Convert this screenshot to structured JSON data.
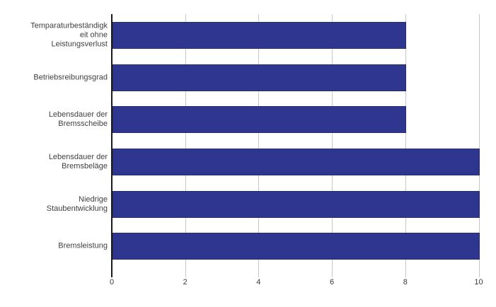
{
  "chart_data": {
    "type": "bar",
    "orientation": "horizontal",
    "title": "",
    "xlabel": "",
    "ylabel": "",
    "categories": [
      "Temparaturbeständigkeit ohne Leistungsverlust",
      "Betriebsreibungsgrad",
      "Lebensdauer der Bremsscheibe",
      "Lebensdauer der Bremsbeläge",
      "Niedrige Staubentwicklung",
      "Bremsleistung"
    ],
    "category_display_lines": [
      [
        "Temparaturbeständigk",
        "eit ohne",
        "Leistungsverlust"
      ],
      [
        "Betriebsreibungsgrad"
      ],
      [
        "Lebensdauer der",
        "Bremsscheibe"
      ],
      [
        "Lebensdauer der",
        "Bremsbeläge"
      ],
      [
        "Niedrige",
        "Staubentwicklung"
      ],
      [
        "Bremsleistung"
      ]
    ],
    "values": [
      8,
      8,
      8,
      10,
      10,
      10
    ],
    "xlim": [
      0,
      10
    ],
    "xticks": [
      "0",
      "2",
      "4",
      "6",
      "8",
      "10"
    ],
    "grid": true,
    "legend": false,
    "colors": {
      "bar_fill": "#2f368f",
      "bar_border": "#272d6e",
      "gridline": "#c9c9c9",
      "axis": "#1a1a1a",
      "text": "#404040",
      "background": "#ffffff"
    }
  }
}
